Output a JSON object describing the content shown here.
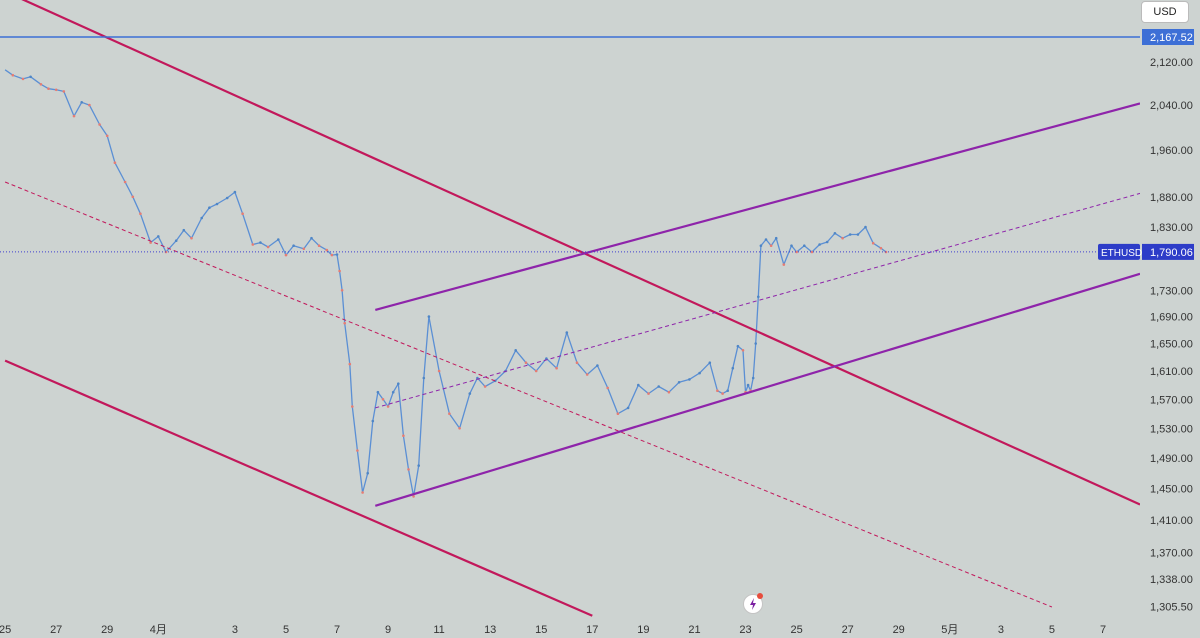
{
  "chart_data": {
    "type": "line",
    "title": "",
    "xlabel": "",
    "ylabel": "",
    "currency": "USD",
    "symbol": "ETHUSD",
    "y_scale": "log",
    "ylim": [
      1290,
      2240
    ],
    "y_ticks": [
      1305.5,
      1338.0,
      1370.0,
      1410.0,
      1450.0,
      1490.0,
      1530.0,
      1570.0,
      1610.0,
      1650.0,
      1690.0,
      1730.0,
      1790.06,
      1830.0,
      1880.0,
      1960.0,
      2040.0,
      2120.0,
      2167.52
    ],
    "y_tick_labels": [
      "1,305.50",
      "1,338.00",
      "1,370.00",
      "1,410.00",
      "1,450.00",
      "1,490.00",
      "1,530.00",
      "1,570.00",
      "1,610.00",
      "1,650.00",
      "1,690.00",
      "1,730.00",
      "1,790.06",
      "1,830.00",
      "1,880.00",
      "1,960.00",
      "2,040.00",
      "2,120.00",
      "2,167.52"
    ],
    "x_ticks": [
      "25",
      "27",
      "29",
      "4月",
      "3",
      "5",
      "7",
      "9",
      "11",
      "13",
      "15",
      "17",
      "19",
      "21",
      "23",
      "25",
      "27",
      "29",
      "5月",
      "3",
      "5",
      "7"
    ],
    "x_tick_days": [
      -7,
      -5,
      -3,
      -1,
      2,
      4,
      6,
      8,
      10,
      12,
      14,
      16,
      18,
      20,
      22,
      24,
      26,
      28,
      30,
      32,
      34,
      36
    ],
    "xlim": [
      -7.2,
      39.8
    ],
    "price": {
      "days": [
        -7.0,
        -6.7,
        -6.3,
        -6.0,
        -5.6,
        -5.3,
        -5.0,
        -4.7,
        -4.3,
        -4.0,
        -3.7,
        -3.3,
        -3.0,
        -2.7,
        -2.3,
        -2.0,
        -1.7,
        -1.3,
        -1.0,
        -0.7,
        -0.3,
        0.0,
        0.3,
        0.7,
        1.0,
        1.3,
        1.7,
        2.0,
        2.3,
        2.7,
        3.0,
        3.3,
        3.7,
        4.0,
        4.3,
        4.7,
        5.0,
        5.3,
        5.6,
        5.8,
        6.0,
        6.1,
        6.2,
        6.3,
        6.5,
        6.6,
        6.8,
        7.0,
        7.2,
        7.4,
        7.6,
        7.8,
        8.0,
        8.2,
        8.4,
        8.6,
        8.8,
        9.0,
        9.2,
        9.4,
        9.6,
        10.0,
        10.4,
        10.8,
        11.2,
        11.5,
        11.8,
        12.2,
        12.6,
        13.0,
        13.4,
        13.8,
        14.2,
        14.6,
        15.0,
        15.4,
        15.8,
        16.2,
        16.6,
        17.0,
        17.4,
        17.8,
        18.2,
        18.6,
        19.0,
        19.4,
        19.8,
        20.2,
        20.6,
        20.9,
        21.1,
        21.3,
        21.5,
        21.7,
        21.9,
        22.0,
        22.1,
        22.2,
        22.3,
        22.4,
        22.5,
        22.6,
        22.8,
        23.0,
        23.2,
        23.5,
        23.8,
        24.0,
        24.3,
        24.6,
        24.9,
        25.2,
        25.5,
        25.8,
        26.1,
        26.4,
        26.7,
        27.0,
        27.3,
        27.5
      ],
      "close": [
        2105,
        2095,
        2088,
        2092,
        2078,
        2070,
        2068,
        2065,
        2020,
        2045,
        2040,
        2005,
        1985,
        1938,
        1905,
        1880,
        1852,
        1805,
        1815,
        1790,
        1808,
        1825,
        1812,
        1845,
        1862,
        1868,
        1878,
        1888,
        1852,
        1802,
        1805,
        1798,
        1810,
        1785,
        1800,
        1795,
        1812,
        1800,
        1793,
        1785,
        1786,
        1760,
        1730,
        1680,
        1620,
        1560,
        1500,
        1445,
        1470,
        1540,
        1580,
        1570,
        1560,
        1580,
        1592,
        1520,
        1475,
        1440,
        1480,
        1600,
        1690,
        1610,
        1550,
        1530,
        1578,
        1600,
        1588,
        1596,
        1610,
        1640,
        1622,
        1610,
        1628,
        1614,
        1666,
        1622,
        1605,
        1618,
        1586,
        1550,
        1558,
        1590,
        1578,
        1588,
        1580,
        1594,
        1598,
        1607,
        1622,
        1582,
        1578,
        1582,
        1614,
        1646,
        1640,
        1580,
        1590,
        1582,
        1600,
        1650,
        1720,
        1800,
        1810,
        1800,
        1812,
        1770,
        1800,
        1790,
        1800,
        1790,
        1802,
        1806,
        1820,
        1812,
        1818,
        1818,
        1830,
        1804,
        1796,
        1790
      ]
    },
    "horizontal_lines": [
      {
        "name": "",
        "value": 2167.52,
        "color": "#3d6fd6",
        "style": "solid"
      },
      {
        "name": "ETHUSD",
        "value": 1790.06,
        "color": "#3f3fcf",
        "style": "dotted"
      }
    ],
    "channels": [
      {
        "color": "#c2185b",
        "lines": [
          {
            "role": "upper",
            "style": "solid",
            "points": [
              [
                -7.0,
                2257
              ],
              [
                38.8,
                1410
              ]
            ]
          },
          {
            "role": "middle",
            "style": "dashed",
            "points": [
              [
                -7.0,
                1905
              ],
              [
                34.0,
                1305
              ]
            ]
          },
          {
            "role": "lower",
            "style": "solid",
            "points": [
              [
                -7.0,
                1625
              ],
              [
                16.0,
                1295
              ]
            ]
          }
        ]
      },
      {
        "color": "#8e24aa",
        "lines": [
          {
            "role": "upper",
            "style": "solid",
            "points": [
              [
                7.5,
                1700
              ],
              [
                38.8,
                2060
              ]
            ]
          },
          {
            "role": "middle",
            "style": "dashed",
            "points": [
              [
                7.5,
                1558
              ],
              [
                38.8,
                1902
              ]
            ]
          },
          {
            "role": "lower",
            "style": "solid",
            "points": [
              [
                7.5,
                1428
              ],
              [
                38.8,
                1772
              ]
            ]
          }
        ]
      }
    ],
    "grid": false,
    "legend": "none"
  }
}
